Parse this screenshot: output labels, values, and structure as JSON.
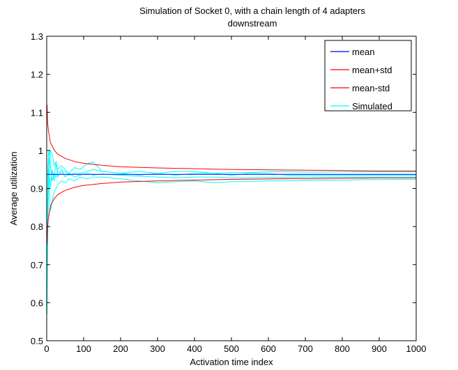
{
  "chart_data": {
    "type": "line",
    "title": "Simulation of Socket 0, with a chain length of 4 adapters",
    "subtitle": "downstream",
    "xlabel": "Activation time index",
    "ylabel": "Average utilization",
    "xlim": [
      0,
      1000
    ],
    "ylim": [
      0.5,
      1.3
    ],
    "xticks": [
      0,
      100,
      200,
      300,
      400,
      500,
      600,
      700,
      800,
      900,
      1000
    ],
    "yticks": [
      0.5,
      0.6,
      0.7,
      0.8,
      0.9,
      1,
      1.1,
      1.2,
      1.3
    ],
    "ytick_labels": [
      "0.5",
      "0.6",
      "0.7",
      "0.8",
      "0.9",
      "1",
      "1.1",
      "1.2",
      "1.3"
    ],
    "grid": false,
    "legend_position": "top-right",
    "series": [
      {
        "name": "mean",
        "color": "#0000ff",
        "x": [
          1,
          1000
        ],
        "y": [
          0.937,
          0.937
        ]
      },
      {
        "name": "mean+std",
        "color": "#ff0000",
        "x": [
          1,
          2,
          3,
          5,
          10,
          20,
          30,
          50,
          75,
          100,
          150,
          200,
          300,
          400,
          500,
          600,
          700,
          800,
          900,
          1000
        ],
        "y": [
          1.12,
          1.083,
          1.067,
          1.049,
          1.021,
          1.001,
          0.99,
          0.979,
          0.971,
          0.966,
          0.961,
          0.957,
          0.954,
          0.952,
          0.95,
          0.949,
          0.948,
          0.947,
          0.946,
          0.946
        ]
      },
      {
        "name": "mean-std",
        "color": "#ff0000",
        "x": [
          1,
          2,
          3,
          5,
          10,
          20,
          30,
          50,
          75,
          100,
          150,
          200,
          300,
          400,
          500,
          600,
          700,
          800,
          900,
          1000
        ],
        "y": [
          0.755,
          0.791,
          0.807,
          0.825,
          0.853,
          0.873,
          0.884,
          0.895,
          0.903,
          0.908,
          0.913,
          0.917,
          0.92,
          0.922,
          0.924,
          0.925,
          0.926,
          0.927,
          0.928,
          0.928
        ]
      },
      {
        "name": "Simulated",
        "color": "#00ffff",
        "x": [
          1,
          3,
          5,
          8,
          10,
          15,
          20,
          25,
          30,
          40,
          50,
          60,
          75,
          90,
          110,
          125,
          150,
          200,
          250,
          300,
          350,
          400,
          450,
          500,
          550,
          600,
          650,
          700,
          750,
          800,
          850,
          900,
          950,
          1000
        ],
        "y": [
          0.57,
          0.78,
          0.92,
          0.97,
          1.0,
          0.99,
          0.96,
          0.97,
          0.95,
          0.96,
          0.95,
          0.94,
          0.955,
          0.95,
          0.965,
          0.97,
          0.945,
          0.94,
          0.935,
          0.94,
          0.935,
          0.94,
          0.94,
          0.935,
          0.94,
          0.94,
          0.935,
          0.935,
          0.935,
          0.935,
          0.935,
          0.935,
          0.935,
          0.935
        ]
      },
      {
        "name": "",
        "color": "#00ffff",
        "x": [
          1,
          3,
          5,
          8,
          10,
          15,
          20,
          25,
          30,
          40,
          50,
          60,
          75,
          90,
          110,
          125,
          150,
          200,
          250,
          300,
          350,
          400,
          450,
          500,
          550,
          600,
          650,
          700,
          750,
          800,
          850,
          900,
          950,
          1000
        ],
        "y": [
          0.6,
          0.86,
          0.95,
          0.88,
          0.84,
          0.87,
          0.89,
          0.9,
          0.91,
          0.92,
          0.915,
          0.925,
          0.92,
          0.93,
          0.925,
          0.93,
          0.93,
          0.925,
          0.92,
          0.915,
          0.918,
          0.92,
          0.915,
          0.918,
          0.918,
          0.92,
          0.92,
          0.922,
          0.922,
          0.922,
          0.923,
          0.923,
          0.924,
          0.924
        ]
      },
      {
        "name": "",
        "color": "#00ffff",
        "x": [
          1,
          3,
          5,
          8,
          10,
          15,
          20,
          25,
          30,
          40,
          50,
          60,
          75,
          90,
          110,
          125,
          150,
          200,
          250,
          300,
          350,
          400,
          450,
          500,
          550,
          600,
          650,
          700,
          750,
          800,
          850,
          900,
          950,
          1000
        ],
        "y": [
          0.65,
          0.9,
          1.0,
          0.93,
          0.9,
          0.95,
          0.92,
          0.97,
          0.93,
          0.95,
          0.93,
          0.94,
          0.93,
          0.935,
          0.94,
          0.935,
          0.938,
          0.935,
          0.932,
          0.93,
          0.928,
          0.93,
          0.93,
          0.928,
          0.928,
          0.929,
          0.929,
          0.93,
          0.93,
          0.93,
          0.93,
          0.93,
          0.93,
          0.93
        ]
      },
      {
        "name": "",
        "color": "#00ffff",
        "x": [
          1,
          3,
          5,
          8,
          10,
          15,
          20,
          25,
          30,
          40,
          50,
          60,
          75,
          90,
          110,
          125,
          150,
          200,
          250,
          300,
          350,
          400,
          450,
          500,
          550,
          600,
          650,
          700,
          750,
          800,
          850,
          900,
          950,
          1000
        ],
        "y": [
          0.7,
          0.95,
          0.98,
          1.0,
          0.96,
          0.92,
          0.94,
          0.93,
          0.945,
          0.94,
          0.945,
          0.935,
          0.94,
          0.94,
          0.945,
          0.95,
          0.945,
          0.94,
          0.945,
          0.94,
          0.945,
          0.945,
          0.94,
          0.942,
          0.942,
          0.944,
          0.944,
          0.943,
          0.943,
          0.944,
          0.944,
          0.944,
          0.944,
          0.944
        ]
      }
    ]
  }
}
